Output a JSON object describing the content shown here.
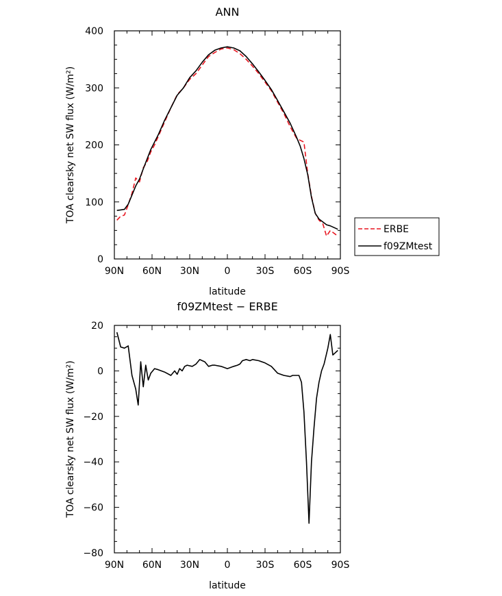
{
  "chart_data": [
    {
      "type": "line",
      "title": "ANN",
      "xlabel": "latitude",
      "ylabel": "TOA clearsky net SW flux (W/m²)",
      "xlim": [
        90,
        -90
      ],
      "ylim": [
        0,
        400
      ],
      "xticks": [
        90,
        60,
        30,
        0,
        -30,
        -60,
        -90
      ],
      "xtick_labels": [
        "90N",
        "60N",
        "30N",
        "0",
        "30S",
        "60S",
        "90S"
      ],
      "yticks": [
        0,
        100,
        200,
        300,
        400
      ],
      "ytick_labels": [
        "0",
        "100",
        "200",
        "300",
        "400"
      ],
      "legend": {
        "placement": "right-bottom",
        "entries": [
          "ERBE",
          "f09ZMtest"
        ]
      },
      "series": [
        {
          "name": "ERBE",
          "color": "#e8141e",
          "dash": "dashed",
          "x": [
            88,
            85,
            82,
            79,
            76,
            73,
            70,
            67,
            64,
            61,
            58,
            55,
            50,
            45,
            40,
            35,
            30,
            25,
            20,
            15,
            10,
            5,
            0,
            -5,
            -10,
            -15,
            -20,
            -25,
            -30,
            -35,
            -40,
            -45,
            -50,
            -55,
            -58,
            -61,
            -64,
            -67,
            -70,
            -73,
            -76,
            -79,
            -82,
            -85,
            -88
          ],
          "values": [
            68,
            75,
            77,
            95,
            115,
            142,
            135,
            160,
            170,
            188,
            200,
            215,
            240,
            265,
            288,
            300,
            315,
            325,
            340,
            355,
            362,
            368,
            370,
            367,
            360,
            350,
            338,
            325,
            310,
            295,
            275,
            255,
            232,
            212,
            208,
            205,
            150,
            110,
            80,
            68,
            62,
            40,
            50,
            45,
            40
          ]
        },
        {
          "name": "f09ZMtest",
          "color": "#000000",
          "dash": "solid",
          "x": [
            88,
            85,
            82,
            79,
            76,
            73,
            70,
            67,
            64,
            61,
            58,
            55,
            50,
            45,
            40,
            35,
            30,
            25,
            20,
            15,
            10,
            5,
            0,
            -5,
            -10,
            -15,
            -20,
            -25,
            -30,
            -35,
            -40,
            -45,
            -50,
            -55,
            -58,
            -61,
            -64,
            -67,
            -70,
            -73,
            -76,
            -79,
            -82,
            -85,
            -88
          ],
          "values": [
            85,
            86,
            87,
            96,
            112,
            128,
            140,
            158,
            175,
            192,
            205,
            218,
            243,
            265,
            287,
            300,
            318,
            330,
            345,
            358,
            366,
            370,
            372,
            370,
            365,
            355,
            342,
            328,
            313,
            297,
            278,
            258,
            238,
            214,
            198,
            176,
            148,
            108,
            80,
            70,
            65,
            60,
            58,
            55,
            52
          ]
        }
      ]
    },
    {
      "type": "line",
      "title": "f09ZMtest − ERBE",
      "xlabel": "latitude",
      "ylabel": "TOA clearsky net SW flux (W/m²)",
      "xlim": [
        90,
        -90
      ],
      "ylim": [
        -80,
        20
      ],
      "xticks": [
        90,
        60,
        30,
        0,
        -30,
        -60,
        -90
      ],
      "xtick_labels": [
        "90N",
        "60N",
        "30N",
        "0",
        "30S",
        "60S",
        "90S"
      ],
      "yticks": [
        -80,
        -60,
        -40,
        -20,
        0,
        20
      ],
      "ytick_labels": [
        "−80",
        "−60",
        "−40",
        "−20",
        "0",
        "20"
      ],
      "series": [
        {
          "color": "#000000",
          "dash": "solid",
          "x": [
            88,
            85,
            82,
            79,
            76,
            73,
            71,
            69,
            67,
            65,
            63,
            61,
            58,
            55,
            50,
            45,
            42,
            40,
            38,
            36,
            34,
            32,
            28,
            25,
            22,
            20,
            18,
            15,
            12,
            10,
            5,
            0,
            -5,
            -8,
            -10,
            -12,
            -15,
            -18,
            -20,
            -25,
            -30,
            -35,
            -40,
            -45,
            -50,
            -52,
            -55,
            -57,
            -59,
            -61,
            -63,
            -65,
            -67,
            -69,
            -71,
            -73,
            -75,
            -77,
            -80,
            -82,
            -84,
            -86,
            -88
          ],
          "values": [
            17,
            10.5,
            10,
            11,
            -2,
            -8,
            -15,
            4,
            -7,
            2.5,
            -4,
            -1,
            1,
            0.5,
            -0.5,
            -2,
            0,
            -1.5,
            1,
            0,
            2,
            2.5,
            2,
            3,
            5,
            4.5,
            4,
            2,
            2.5,
            2.5,
            2,
            1,
            2,
            2.5,
            3,
            4.5,
            5,
            4.5,
            5,
            4.5,
            3.5,
            2,
            -1,
            -2,
            -2.5,
            -2,
            -2,
            -2,
            -5,
            -18,
            -40,
            -67,
            -40,
            -25,
            -12,
            -5,
            0,
            3,
            10,
            16,
            7,
            8,
            9
          ]
        }
      ]
    }
  ],
  "legend_entries": [
    "ERBE",
    "f09ZMtest"
  ]
}
